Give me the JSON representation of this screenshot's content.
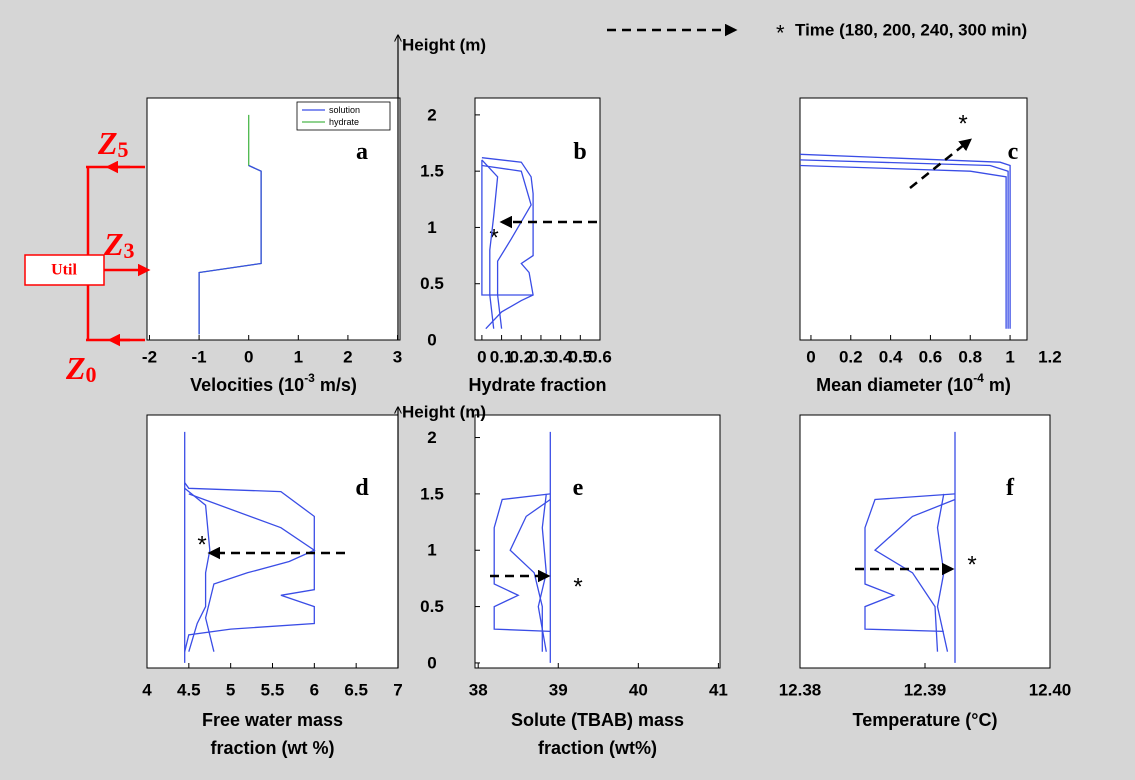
{
  "time_note": {
    "marker": "*",
    "label": "Time (180, 200, 240, 300 min)"
  },
  "zones": [
    {
      "letter": "Z",
      "index": "5"
    },
    {
      "letter": "Z",
      "index": "3"
    },
    {
      "letter": "Z",
      "index": "0"
    }
  ],
  "util": "Util",
  "chart_data": [
    {
      "type": "line",
      "label": "a",
      "xlabel": {
        "text": "Velocities (10",
        "sup": "-3",
        "tail": " m/s)"
      },
      "xlim": [
        -2.05,
        3.05
      ],
      "xticks": [
        -2,
        -1,
        0,
        1,
        2,
        3
      ],
      "ylim": [
        0,
        2.15
      ],
      "series": [
        {
          "name": "hydrate",
          "color": "#4cb84c",
          "x": [
            -1,
            -1,
            0.25,
            0.25,
            0,
            0
          ],
          "y": [
            0.05,
            0.6,
            0.68,
            1.5,
            1.55,
            2.0
          ]
        },
        {
          "name": "solution",
          "color": "#3a4de6",
          "x": [
            -1,
            -1,
            0.25,
            0.25,
            0
          ],
          "y": [
            0.05,
            0.6,
            0.68,
            1.5,
            1.55
          ]
        }
      ]
    },
    {
      "type": "line",
      "label": "b",
      "annotation": "*",
      "xlabel": "Hydrate fraction",
      "ylabel": "Height (m)",
      "xlim": [
        -0.035,
        0.6
      ],
      "xticks": [
        0,
        0.1,
        0.2,
        0.3,
        0.4,
        0.5,
        0.6
      ],
      "ylim": [
        0,
        2.15
      ],
      "yticks": [
        0,
        0.5,
        1,
        1.5,
        2
      ],
      "series": [
        {
          "color": "#3a4de6",
          "x": [
            0,
            0.2,
            0.25,
            0.26,
            0.26,
            0.2,
            0.24,
            0.26,
            0.2,
            0.1,
            0.02
          ],
          "y": [
            1.62,
            1.58,
            1.45,
            1.3,
            0.75,
            0.68,
            0.6,
            0.4,
            0.35,
            0.25,
            0.1
          ]
        },
        {
          "color": "#3a4de6",
          "x": [
            0,
            0.2,
            0.25,
            0.15,
            0.08,
            0.08,
            0.1
          ],
          "y": [
            1.55,
            1.5,
            1.2,
            0.9,
            0.7,
            0.4,
            0.1
          ]
        },
        {
          "color": "#3a4de6",
          "x": [
            0,
            0.08,
            0.06,
            0.04,
            0.04,
            0.06
          ],
          "y": [
            1.6,
            1.45,
            1.1,
            0.8,
            0.4,
            0.1
          ]
        },
        {
          "color": "#3a4de6",
          "x": [
            0,
            0,
            0,
            0.26
          ],
          "y": [
            1.6,
            0.65,
            0.4,
            0.4
          ]
        }
      ]
    },
    {
      "type": "line",
      "label": "c",
      "annotation": "*",
      "xlabel": {
        "text": "Mean diameter (10",
        "sup": "-4",
        "tail": " m)"
      },
      "xlim": [
        -0.055,
        1.085
      ],
      "xticks": [
        0,
        0.2,
        0.4,
        0.6,
        0.8,
        1,
        1.2
      ],
      "ylim": [
        0,
        2.15
      ],
      "series": [
        {
          "color": "#3a4de6",
          "x": [
            1.0,
            1.0,
            0.95,
            -0.055
          ],
          "y": [
            0.1,
            1.55,
            1.58,
            1.65
          ]
        },
        {
          "color": "#3a4de6",
          "x": [
            0.99,
            0.99,
            0.9,
            -0.055
          ],
          "y": [
            0.1,
            1.5,
            1.55,
            1.6
          ]
        },
        {
          "color": "#3a4de6",
          "x": [
            0.98,
            0.98,
            0.8,
            -0.055
          ],
          "y": [
            0.1,
            1.45,
            1.5,
            1.55
          ]
        }
      ]
    },
    {
      "type": "line",
      "label": "d",
      "annotation": "*",
      "xlabel": [
        "Free water mass",
        "fraction (wt %)"
      ],
      "xlim": [
        4,
        7
      ],
      "xticks": [
        4,
        4.5,
        5,
        5.5,
        6,
        6.5,
        7
      ],
      "ylim": [
        -0.045,
        2.2
      ],
      "series": [
        {
          "color": "#3a4de6",
          "x": [
            4.45,
            4.45,
            4.45
          ],
          "y": [
            2.05,
            1.62,
            0.0
          ]
        },
        {
          "color": "#3a4de6",
          "x": [
            4.45,
            4.5,
            5.6,
            6.0,
            6.0,
            6.0,
            5.6,
            6.0,
            6.0,
            5.0,
            4.5,
            4.45
          ],
          "y": [
            1.6,
            1.55,
            1.52,
            1.3,
            1.1,
            0.65,
            0.6,
            0.5,
            0.35,
            0.3,
            0.25,
            0.1
          ]
        },
        {
          "color": "#3a4de6",
          "x": [
            4.5,
            5.6,
            6.0,
            5.7,
            5.2,
            4.8,
            4.7,
            4.8
          ],
          "y": [
            1.5,
            1.2,
            1.0,
            0.9,
            0.8,
            0.7,
            0.4,
            0.1
          ]
        },
        {
          "color": "#3a4de6",
          "x": [
            4.45,
            4.7,
            4.75,
            4.7,
            4.7,
            4.6,
            4.5
          ],
          "y": [
            1.55,
            1.4,
            1.0,
            0.8,
            0.5,
            0.35,
            0.1
          ]
        }
      ]
    },
    {
      "type": "line",
      "label": "e",
      "annotation": "*",
      "xlabel": [
        "Solute (TBAB) mass",
        "fraction (wt%)"
      ],
      "ylabel": "Height (m)",
      "xlim": [
        37.96,
        41.02
      ],
      "xticks": [
        38,
        39,
        40,
        41
      ],
      "ylim": [
        -0.045,
        2.2
      ],
      "yticks": [
        0,
        0.5,
        1,
        1.5,
        2
      ],
      "series": [
        {
          "color": "#3a4de6",
          "x": [
            38.9,
            38.9
          ],
          "y": [
            2.05,
            0.0
          ]
        },
        {
          "color": "#3a4de6",
          "x": [
            38.9,
            38.3,
            38.2,
            38.2,
            38.5,
            38.2,
            38.2,
            38.9
          ],
          "y": [
            1.5,
            1.45,
            1.2,
            0.7,
            0.6,
            0.5,
            0.3,
            0.28
          ]
        },
        {
          "color": "#3a4de6",
          "x": [
            38.9,
            38.6,
            38.4,
            38.7,
            38.8,
            38.8
          ],
          "y": [
            1.45,
            1.3,
            1.0,
            0.8,
            0.5,
            0.1
          ]
        },
        {
          "color": "#3a4de6",
          "x": [
            38.85,
            38.8,
            38.85,
            38.75,
            38.85
          ],
          "y": [
            1.5,
            1.2,
            0.8,
            0.5,
            0.1
          ]
        }
      ]
    },
    {
      "type": "line",
      "label": "f",
      "annotation": "*",
      "xlabel": "Temperature (°C)",
      "xlim": [
        12.38,
        12.4
      ],
      "xticks": [
        12.38,
        12.39,
        {
          "value": 12.4,
          "label": "12.40"
        }
      ],
      "ylim": [
        -0.045,
        2.2
      ],
      "series": [
        {
          "color": "#3a4de6",
          "x": [
            12.3924,
            12.3924
          ],
          "y": [
            2.05,
            0.0
          ]
        },
        {
          "color": "#3a4de6",
          "x": [
            12.3924,
            12.386,
            12.3852,
            12.3852,
            12.3875,
            12.3852,
            12.3852,
            12.3915
          ],
          "y": [
            1.5,
            1.45,
            1.2,
            0.7,
            0.6,
            0.5,
            0.3,
            0.28
          ]
        },
        {
          "color": "#3a4de6",
          "x": [
            12.3924,
            12.389,
            12.386,
            12.389,
            12.3908,
            12.391
          ],
          "y": [
            1.45,
            1.3,
            1.0,
            0.8,
            0.5,
            0.1
          ]
        },
        {
          "color": "#3a4de6",
          "x": [
            12.3915,
            12.391,
            12.3915,
            12.391,
            12.3918
          ],
          "y": [
            1.5,
            1.2,
            0.8,
            0.5,
            0.1
          ]
        }
      ]
    }
  ]
}
